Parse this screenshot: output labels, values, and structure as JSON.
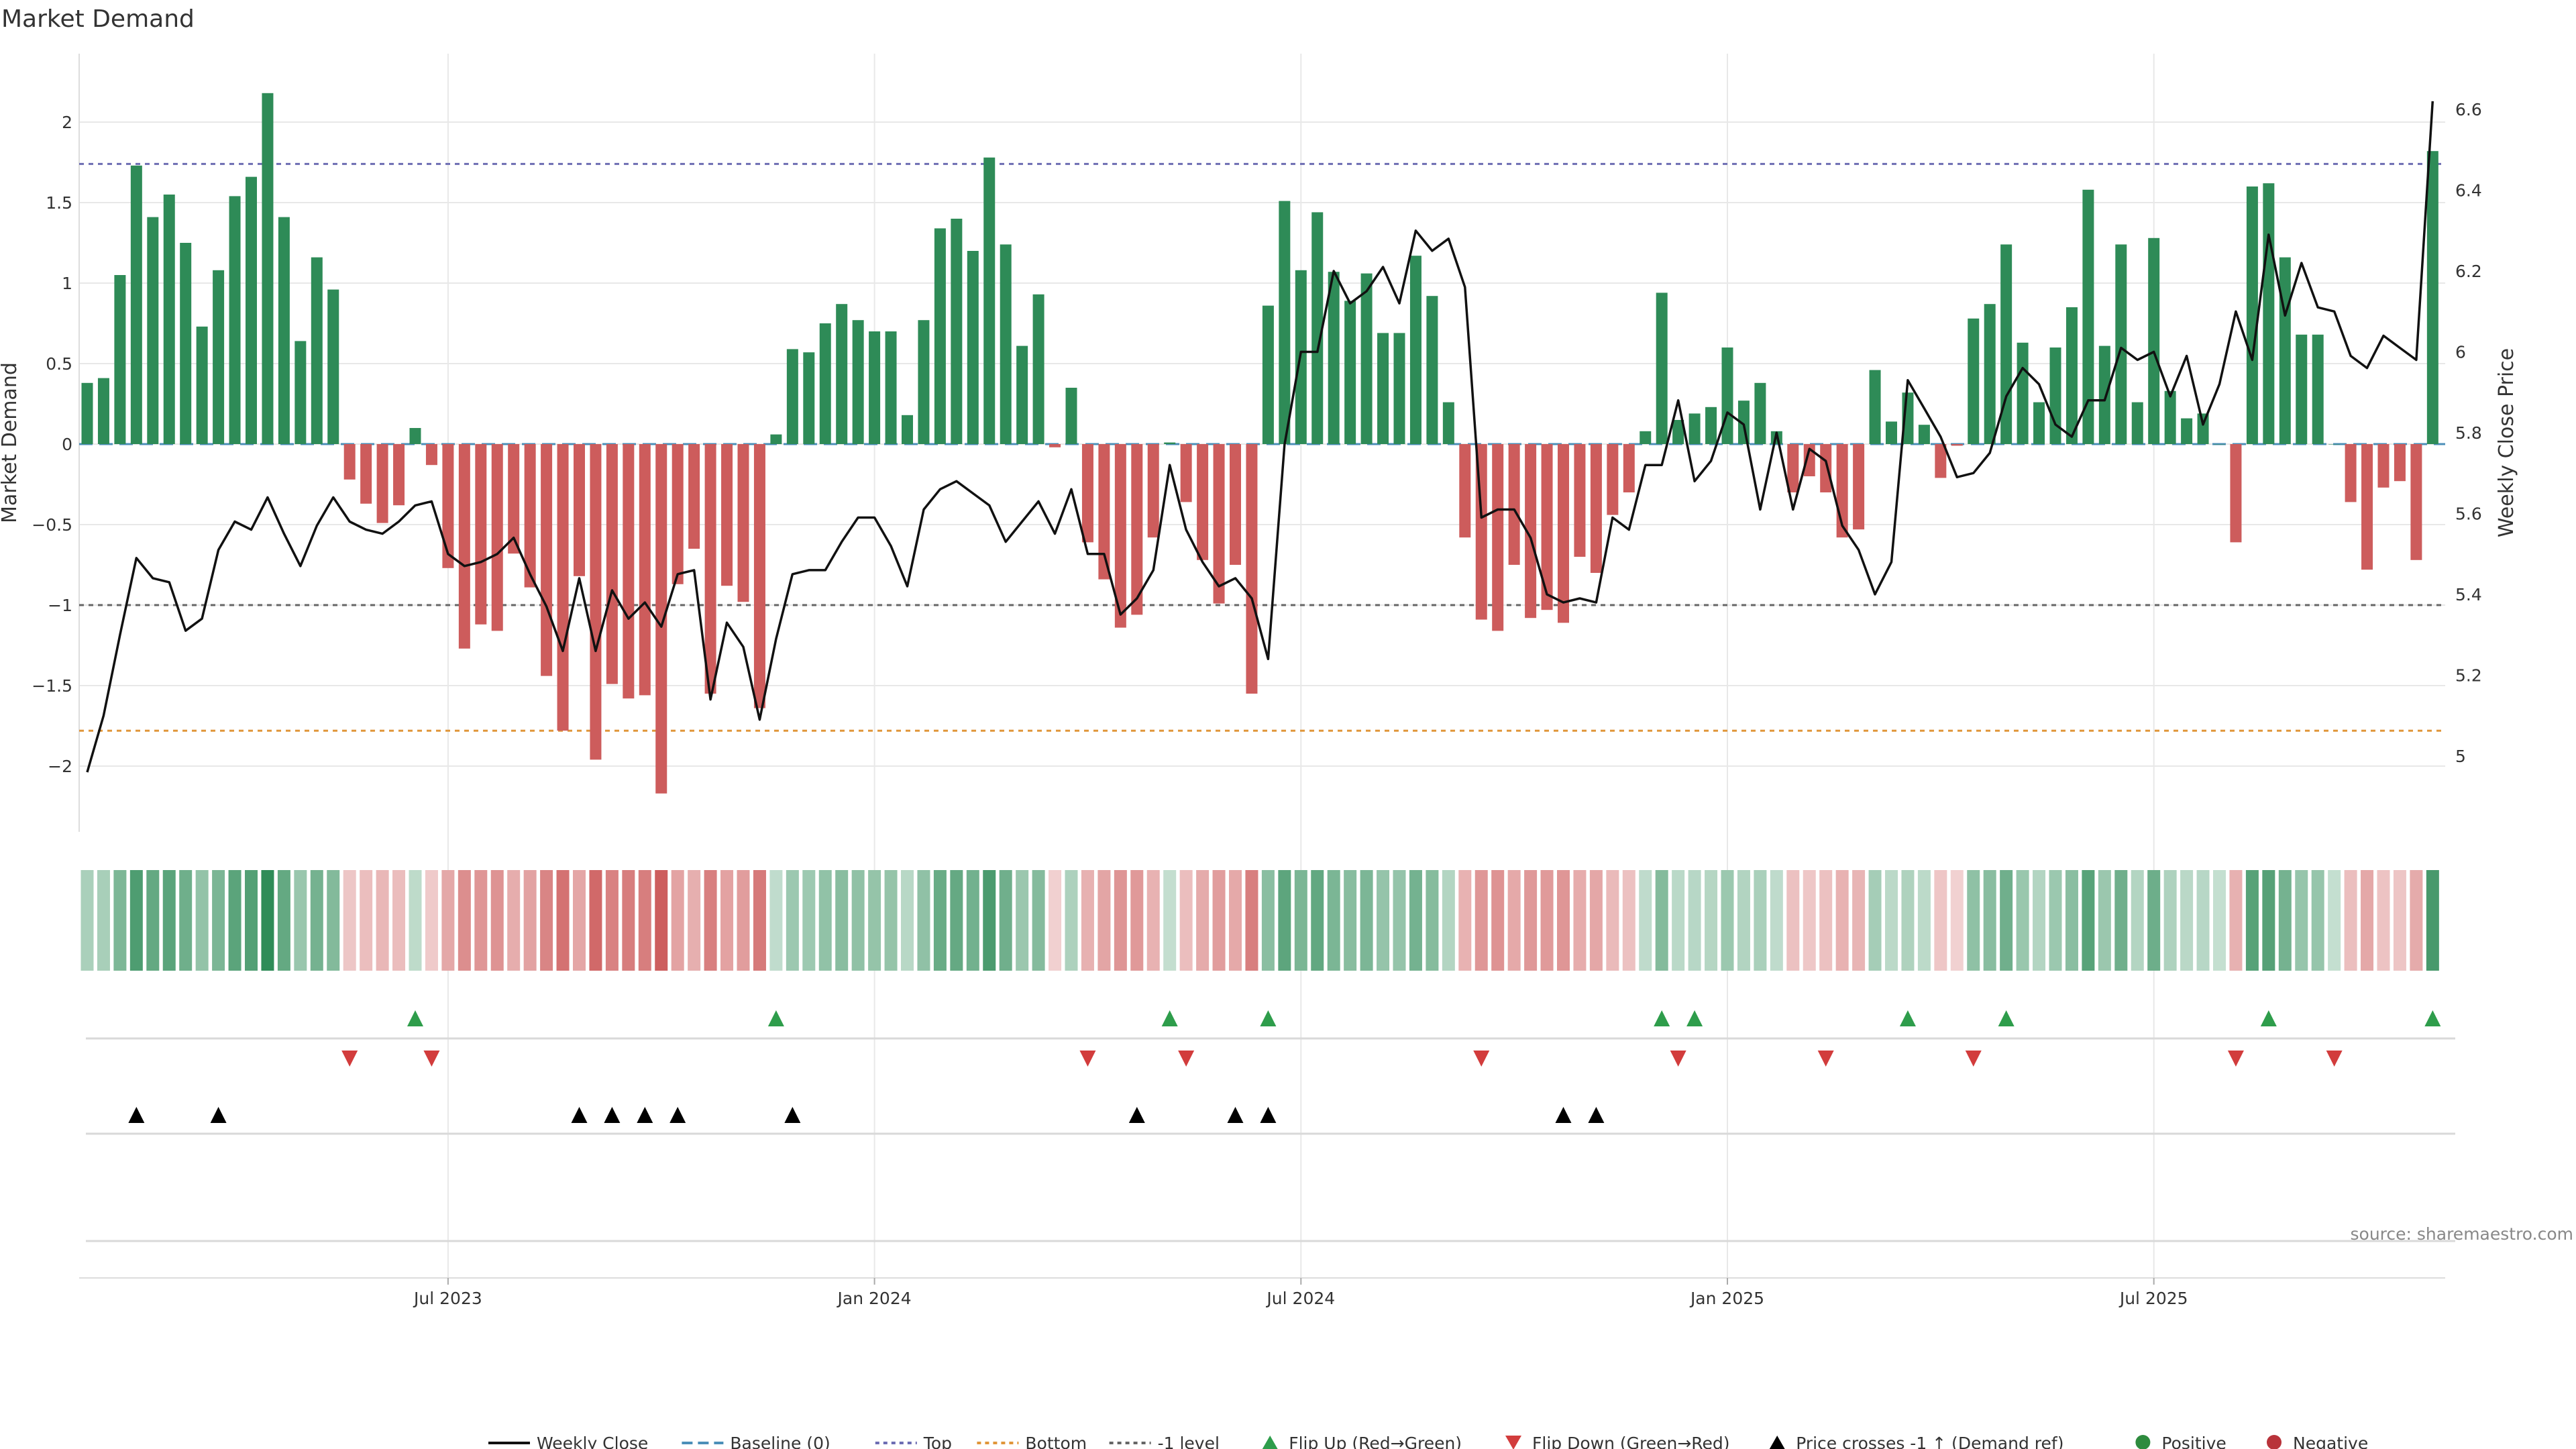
{
  "chart_data": {
    "type": "bar",
    "title": "Market Demand",
    "ylabel": "Market Demand",
    "y2label": "Weekly Close Price",
    "source": "source: sharemaestro.com",
    "ylim": [
      -2.4,
      2.4
    ],
    "y2lim": [
      4.88,
      6.68
    ],
    "y_ticks": [
      2,
      1.5,
      1,
      0.5,
      0,
      -0.5,
      -1,
      -1.5,
      -2
    ],
    "y_tick_labels": [
      "2",
      "1.5",
      "1",
      "0.5",
      "0",
      "−0.5",
      "−1",
      "−1.5",
      "−2"
    ],
    "y2_ticks": [
      6.6,
      6.4,
      6.2,
      6.0,
      5.8,
      5.6,
      5.4,
      5.2,
      5.0
    ],
    "y2_tick_labels": [
      "6.6",
      "6.4",
      "6.2",
      "6",
      "5.8",
      "5.6",
      "5.4",
      "5.2",
      "5"
    ],
    "x_ticks": [
      {
        "label": "Jul 2023",
        "week": 22
      },
      {
        "label": "Jan 2024",
        "week": 48
      },
      {
        "label": "Jul 2024",
        "week": 74
      },
      {
        "label": "Jan 2025",
        "week": 100
      },
      {
        "label": "Jul 2025",
        "week": 126
      }
    ],
    "reference_lines": {
      "top": 1.74,
      "bottom": -1.78,
      "minus_one": -1.0,
      "baseline": 0
    },
    "demand": [
      0.38,
      0.41,
      1.05,
      1.73,
      1.41,
      1.55,
      1.25,
      0.73,
      1.08,
      1.54,
      1.66,
      2.18,
      1.41,
      0.64,
      1.16,
      0.96,
      -0.22,
      -0.37,
      -0.49,
      -0.38,
      0.1,
      -0.13,
      -0.77,
      -1.27,
      -1.12,
      -1.16,
      -0.68,
      -0.89,
      -1.44,
      -1.78,
      -0.82,
      -1.96,
      -1.49,
      -1.58,
      -1.56,
      -2.17,
      -0.87,
      -0.65,
      -1.55,
      -0.88,
      -0.98,
      -1.64,
      0.06,
      0.59,
      0.57,
      0.75,
      0.87,
      0.77,
      0.7,
      0.7,
      0.18,
      0.77,
      1.34,
      1.4,
      1.2,
      1.78,
      1.24,
      0.61,
      0.93,
      -0.02,
      0.35,
      -0.61,
      -0.84,
      -1.14,
      -1.06,
      -0.58,
      0.01,
      -0.36,
      -0.72,
      -0.99,
      -0.75,
      -1.55,
      0.86,
      1.51,
      1.08,
      1.44,
      1.07,
      0.89,
      1.06,
      0.69,
      0.69,
      1.17,
      0.92,
      0.26,
      -0.58,
      -1.09,
      -1.16,
      -0.75,
      -1.08,
      -1.03,
      -1.11,
      -0.7,
      -0.8,
      -0.44,
      -0.3,
      0.08,
      0.94,
      0.15,
      0.19,
      0.23,
      0.6,
      0.27,
      0.38,
      0.08,
      -0.3,
      -0.2,
      -0.3,
      -0.58,
      -0.53,
      0.46,
      0.14,
      0.32,
      0.12,
      -0.21,
      -0.01,
      0.78,
      0.87,
      1.24,
      0.63,
      0.26,
      0.6,
      0.85,
      1.58,
      0.61,
      1.24,
      0.26,
      1.28,
      0.33,
      0.16,
      0.19,
      0.0,
      -0.61,
      1.6,
      1.62,
      1.16,
      0.68,
      0.68,
      0.0,
      -0.36,
      -0.78,
      -0.27,
      -0.23,
      -0.72,
      1.82
    ],
    "close": [
      4.96,
      5.1,
      5.3,
      5.49,
      5.44,
      5.43,
      5.31,
      5.34,
      5.51,
      5.58,
      5.56,
      5.64,
      5.55,
      5.47,
      5.57,
      5.64,
      5.58,
      5.56,
      5.55,
      5.58,
      5.62,
      5.63,
      5.5,
      5.47,
      5.48,
      5.5,
      5.54,
      5.45,
      5.37,
      5.26,
      5.44,
      5.26,
      5.41,
      5.34,
      5.38,
      5.32,
      5.45,
      5.46,
      5.14,
      5.33,
      5.27,
      5.09,
      5.29,
      5.45,
      5.46,
      5.46,
      5.53,
      5.59,
      5.59,
      5.52,
      5.42,
      5.61,
      5.66,
      5.68,
      5.65,
      5.62,
      5.53,
      5.58,
      5.63,
      5.55,
      5.66,
      5.5,
      5.5,
      5.35,
      5.39,
      5.46,
      5.72,
      5.56,
      5.48,
      5.42,
      5.44,
      5.39,
      5.24,
      5.77,
      6.0,
      6.0,
      6.2,
      6.12,
      6.15,
      6.21,
      6.12,
      6.3,
      6.25,
      6.28,
      6.16,
      5.59,
      5.61,
      5.61,
      5.54,
      5.4,
      5.38,
      5.39,
      5.38,
      5.59,
      5.56,
      5.72,
      5.72,
      5.88,
      5.68,
      5.73,
      5.85,
      5.82,
      5.61,
      5.8,
      5.61,
      5.76,
      5.73,
      5.57,
      5.51,
      5.4,
      5.48,
      5.93,
      5.86,
      5.79,
      5.69,
      5.7,
      5.75,
      5.89,
      5.96,
      5.92,
      5.82,
      5.79,
      5.88,
      5.88,
      6.01,
      5.98,
      6.0,
      5.89,
      5.99,
      5.82,
      5.92,
      6.1,
      5.98,
      6.29,
      6.09,
      6.22,
      6.11,
      6.1,
      5.99,
      5.96,
      6.04,
      6.01,
      5.98,
      6.62
    ],
    "flip_up_weeks": [
      20,
      42,
      66,
      72,
      96,
      98,
      111,
      117,
      133,
      143
    ],
    "flip_down_weeks": [
      16,
      21,
      61,
      67,
      85,
      97,
      106,
      115,
      131,
      137
    ],
    "price_cross_weeks": [
      3,
      8,
      30,
      32,
      34,
      36,
      43,
      64,
      70,
      72,
      90,
      92
    ],
    "legend": [
      {
        "label": "Weekly Close",
        "marker": "solid-line",
        "color": "#111111"
      },
      {
        "label": "Baseline (0)",
        "marker": "dashed-line",
        "color": "#4c8fb8"
      },
      {
        "label": "Top",
        "marker": "dotted-line",
        "color": "#6d6db3"
      },
      {
        "label": "Bottom",
        "marker": "dotted-line",
        "color": "#e0963a"
      },
      {
        "label": "-1 level",
        "marker": "dotted-line",
        "color": "#666666"
      },
      {
        "label": "Flip Up (Red→Green)",
        "marker": "triangle-up",
        "color": "#2e9d4b"
      },
      {
        "label": "Flip Down (Green→Red)",
        "marker": "triangle-down",
        "color": "#d23c3c"
      },
      {
        "label": "Price crosses -1 ↑ (Demand ref)",
        "marker": "triangle-up",
        "color": "#000000"
      },
      {
        "label": "Positive",
        "marker": "circle",
        "color": "#2e8b3e"
      },
      {
        "label": "Negative",
        "marker": "circle",
        "color": "#b8333a"
      }
    ],
    "colors": {
      "positive_bar": "#2e8b57",
      "negative_bar": "#cd5c5c",
      "close_line": "#111111",
      "flip_up": "#2e9d4b",
      "flip_down": "#d23c3c",
      "price_cross": "#000000",
      "heat_positive": "#2e8b57",
      "heat_negative": "#cd5c5c"
    }
  }
}
